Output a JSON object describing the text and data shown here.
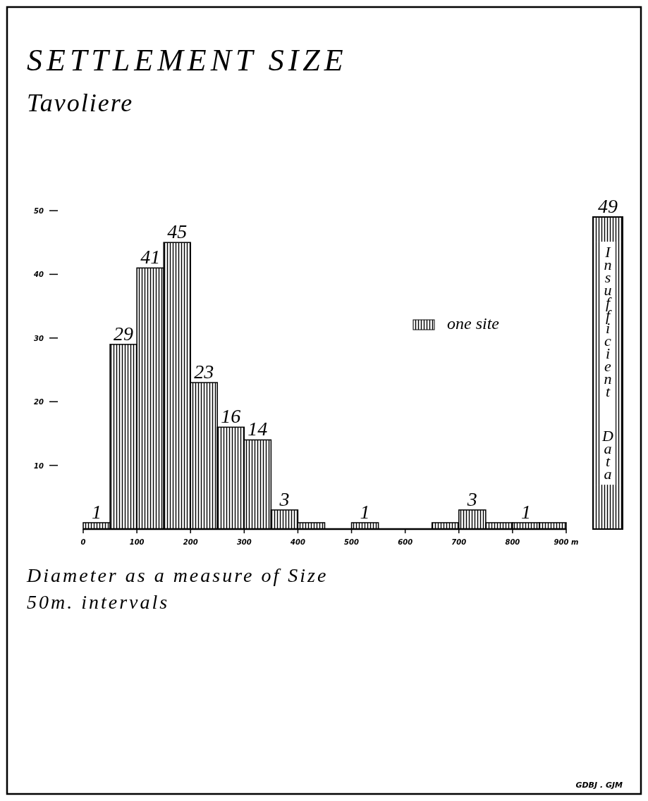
{
  "chart_data": [
    {
      "type": "histogram",
      "title": "SETTLEMENT SIZE",
      "subtitle": "Tavoliere",
      "xlabel": "Diameter as a measure of Size",
      "annotations": [
        "50m. intervals",
        "GDBJ . GJM"
      ],
      "bins": [
        0,
        50,
        100,
        150,
        200,
        250,
        300,
        350,
        400,
        450,
        500,
        550,
        600,
        650,
        700,
        750,
        800,
        850,
        900
      ],
      "series": [
        {
          "name": "one site",
          "color": "#000000",
          "values": [
            1,
            29,
            41,
            45,
            23,
            16,
            14,
            3,
            1,
            0,
            1,
            0,
            0,
            1,
            3,
            1,
            1,
            1
          ]
        }
      ],
      "value_labels": [
        "1",
        "29",
        "41",
        "45",
        "23",
        "16",
        "14",
        "3",
        null,
        null,
        "1",
        null,
        null,
        null,
        "3",
        null,
        "1",
        null
      ],
      "xlim": [
        0,
        900
      ],
      "xticks": [
        0,
        100,
        200,
        300,
        400,
        500,
        600,
        700,
        800,
        {
          "value": 900,
          "label": "900 m"
        }
      ],
      "ylim": [
        0,
        50
      ],
      "yticks": [
        10,
        20,
        30,
        40,
        50
      ],
      "legend": "right"
    },
    {
      "type": "other",
      "categories": [
        "Insufficient Data"
      ],
      "values": [
        49
      ],
      "value_labels": [
        "49"
      ],
      "color": "#000000"
    }
  ]
}
